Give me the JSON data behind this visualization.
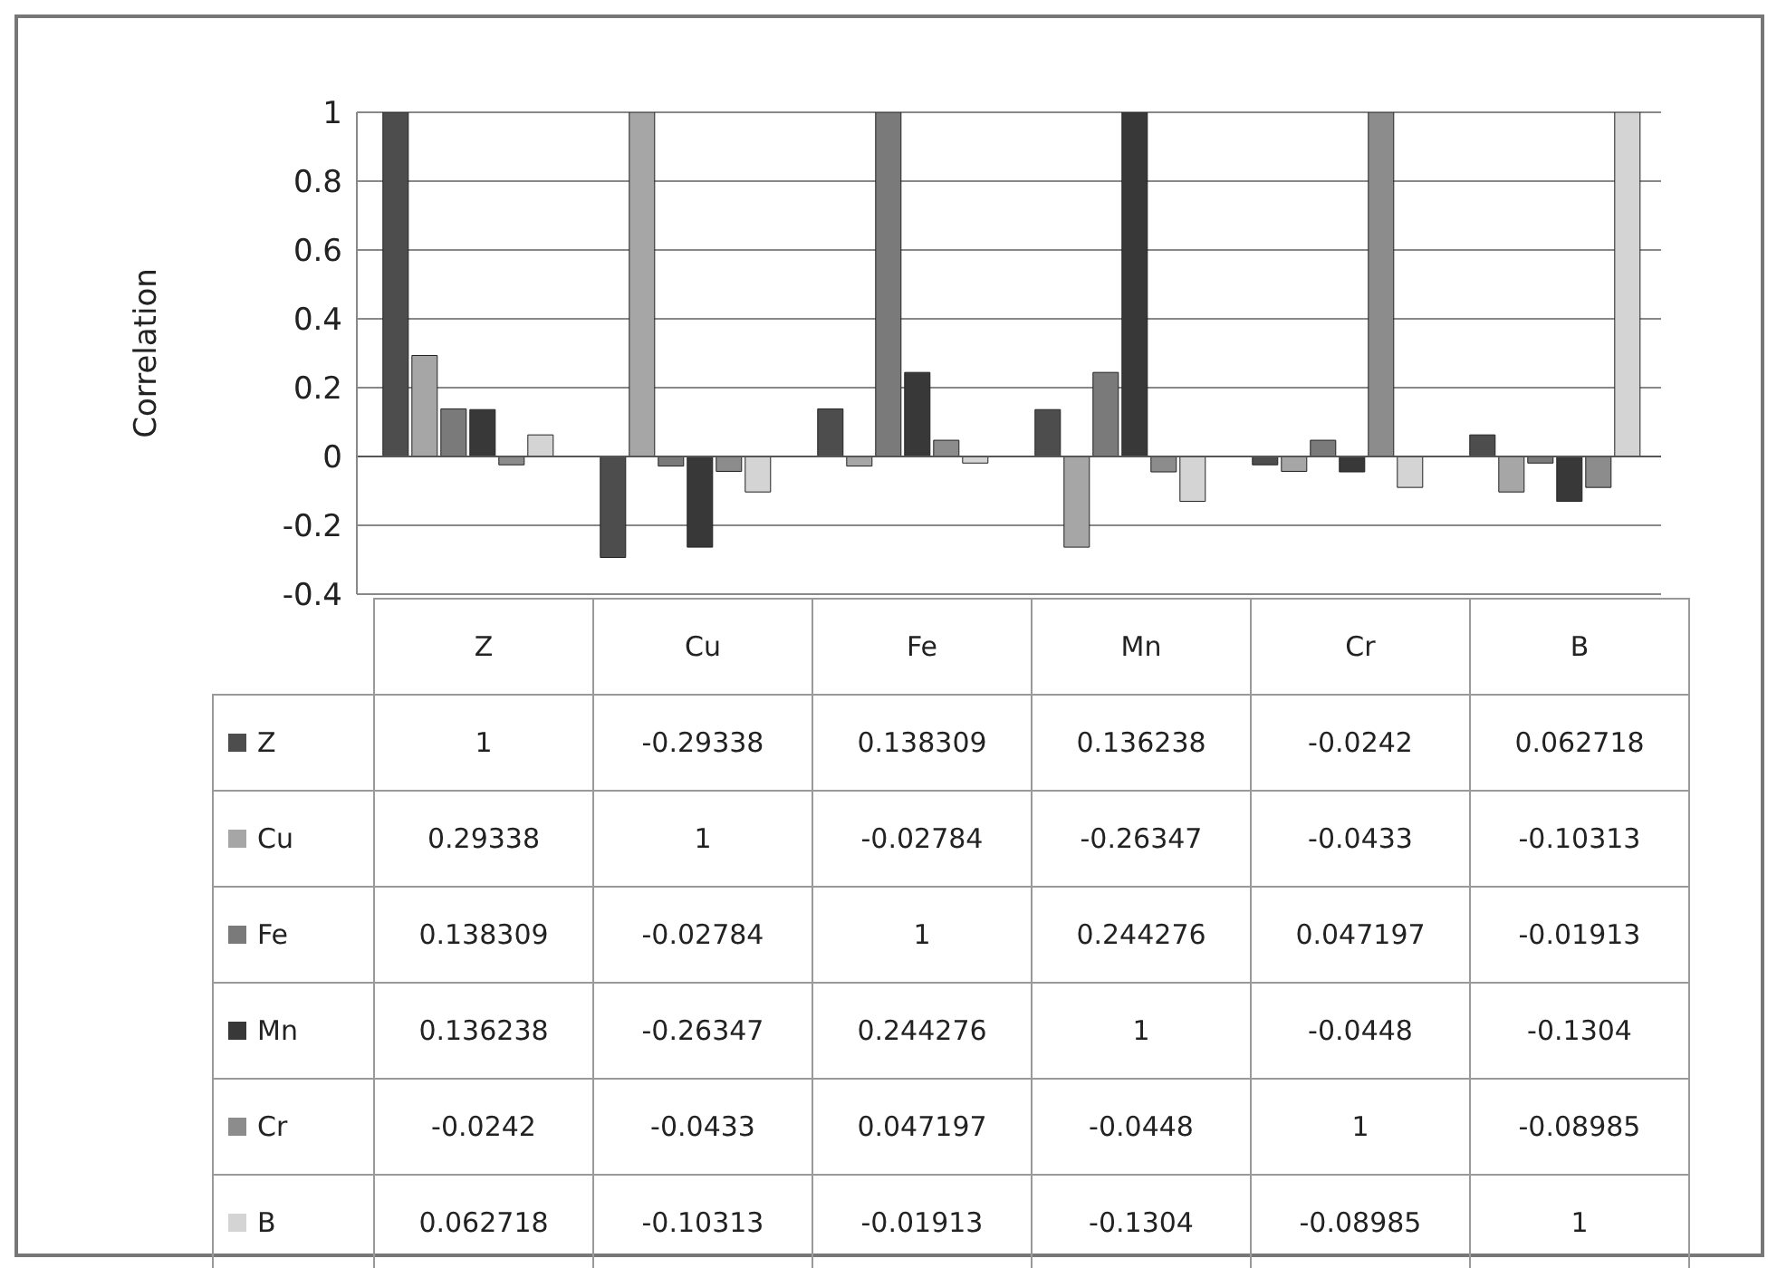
{
  "chart_data": {
    "type": "bar",
    "ylabel": "Correlation",
    "categories": [
      "Z",
      "Cu",
      "Fe",
      "Mn",
      "Cr",
      "B"
    ],
    "series": [
      {
        "name": "Z",
        "color": "#4d4d4d",
        "values": [
          1,
          -0.29338,
          0.138309,
          0.136238,
          -0.0242,
          0.062718
        ]
      },
      {
        "name": "Cu",
        "color": "#a6a6a6",
        "values": [
          0.29338,
          1,
          -0.02784,
          -0.26347,
          -0.0433,
          -0.10313
        ]
      },
      {
        "name": "Fe",
        "color": "#7a7a7a",
        "values": [
          0.138309,
          -0.02784,
          1,
          0.244276,
          0.047197,
          -0.01913
        ]
      },
      {
        "name": "Mn",
        "color": "#383838",
        "values": [
          0.136238,
          -0.26347,
          0.244276,
          1,
          -0.0448,
          -0.1304
        ]
      },
      {
        "name": "Cr",
        "color": "#8c8c8c",
        "values": [
          -0.0242,
          -0.0433,
          0.047197,
          -0.0448,
          1,
          -0.08985
        ]
      },
      {
        "name": "B",
        "color": "#d4d4d4",
        "values": [
          0.062718,
          -0.10313,
          -0.01913,
          -0.1304,
          -0.08985,
          1
        ]
      }
    ],
    "ylim": [
      -0.4,
      1
    ],
    "yticks": [
      -0.4,
      -0.2,
      0,
      0.2,
      0.4,
      0.6,
      0.8,
      1
    ],
    "grid": "y",
    "legend": "bottom",
    "data_labels": true,
    "tick_labels": "y"
  }
}
